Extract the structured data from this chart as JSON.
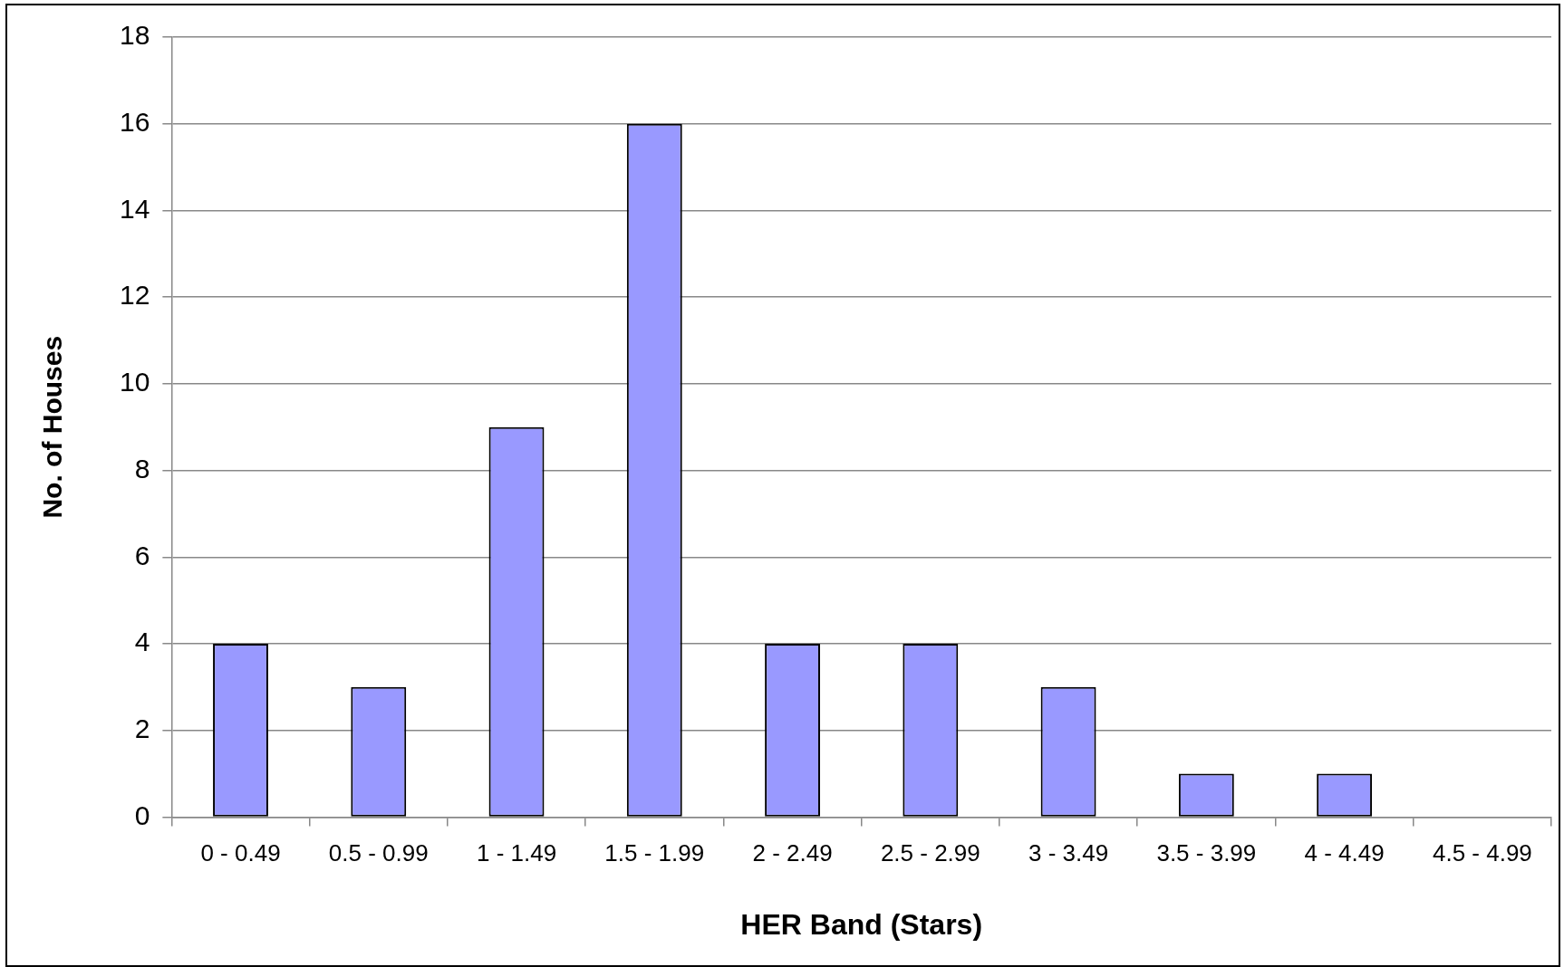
{
  "chart_data": {
    "type": "bar",
    "xlabel": "HER Band (Stars)",
    "ylabel": "No. of Houses",
    "categories": [
      "0 - 0.49",
      "0.5 - 0.99",
      "1 - 1.49",
      "1.5 - 1.99",
      "2 - 2.49",
      "2.5 - 2.99",
      "3 - 3.49",
      "3.5 - 3.99",
      "4 - 4.49",
      "4.5 - 4.99"
    ],
    "values": [
      4,
      3,
      9,
      16,
      4,
      4,
      3,
      1,
      1,
      0
    ],
    "color": "#9999ff",
    "ylim": [
      0,
      18
    ],
    "yticks": [
      0,
      2,
      4,
      6,
      8,
      10,
      12,
      14,
      16,
      18
    ],
    "grid": "y",
    "legend": false
  }
}
